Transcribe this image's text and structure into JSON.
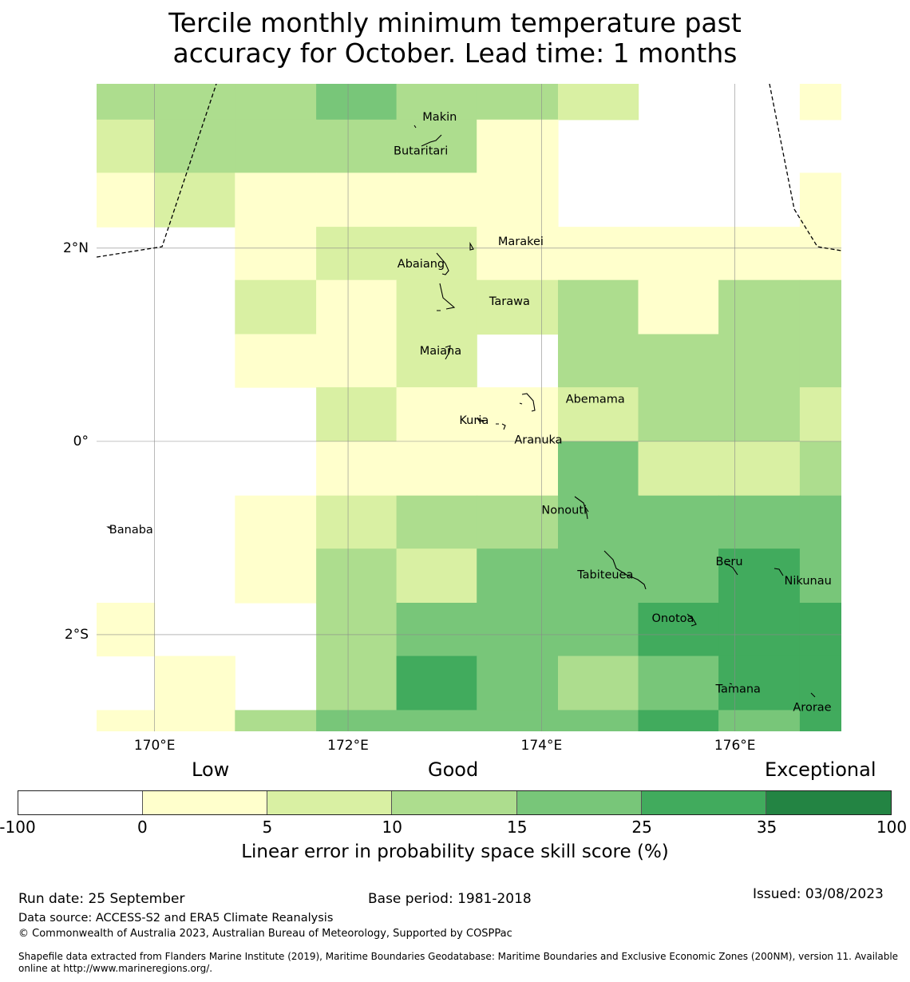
{
  "title": {
    "line1": "Tercile monthly minimum temperature past",
    "line2": "accuracy for October. Lead time: 1 months"
  },
  "map": {
    "lon_min": 169.4,
    "lon_max": 177.1,
    "lat_min": -3.0,
    "lat_max": 3.7,
    "x_ticks": [
      {
        "lon": 170,
        "label": "170°E"
      },
      {
        "lon": 172,
        "label": "172°E"
      },
      {
        "lon": 174,
        "label": "174°E"
      },
      {
        "lon": 176,
        "label": "176°E"
      }
    ],
    "y_ticks": [
      {
        "lat": 2,
        "label": "2°N"
      },
      {
        "lat": 0,
        "label": "0°"
      },
      {
        "lat": -2,
        "label": "2°S"
      }
    ],
    "grid_lon_edges": [
      169.4,
      170.0,
      170.83,
      171.67,
      172.5,
      173.33,
      174.17,
      175.0,
      175.83,
      176.67,
      177.1
    ],
    "grid_lat_edges": [
      3.7,
      3.33,
      2.78,
      2.22,
      1.67,
      1.11,
      0.56,
      0.0,
      -0.56,
      -1.11,
      -1.67,
      -2.22,
      -2.78,
      -3.0
    ],
    "cells": [
      [
        3,
        3,
        3,
        4,
        3,
        3,
        2,
        0,
        0,
        1
      ],
      [
        2,
        3,
        3,
        3,
        3,
        1,
        0,
        0,
        0,
        0
      ],
      [
        1,
        2,
        1,
        1,
        1,
        1,
        0,
        0,
        0,
        1
      ],
      [
        0,
        0,
        1,
        2,
        2,
        1,
        1,
        1,
        1,
        1
      ],
      [
        0,
        0,
        2,
        1,
        2,
        2,
        3,
        1,
        3,
        3
      ],
      [
        0,
        0,
        1,
        1,
        2,
        0,
        3,
        3,
        3,
        3
      ],
      [
        0,
        0,
        0,
        2,
        1,
        1,
        2,
        3,
        3,
        2
      ],
      [
        0,
        0,
        0,
        1,
        1,
        1,
        4,
        2,
        2,
        3
      ],
      [
        0,
        0,
        1,
        2,
        3,
        3,
        4,
        4,
        4,
        4
      ],
      [
        0,
        0,
        1,
        3,
        2,
        4,
        4,
        4,
        5,
        4
      ],
      [
        1,
        0,
        0,
        3,
        4,
        4,
        4,
        5,
        5,
        5
      ],
      [
        0,
        1,
        0,
        3,
        5,
        4,
        3,
        4,
        5,
        5
      ],
      [
        1,
        1,
        3,
        4,
        4,
        4,
        4,
        5,
        4,
        5
      ]
    ],
    "places": [
      {
        "name": "Makin",
        "lon": 172.77,
        "lat": 3.32
      },
      {
        "name": "Butaritari",
        "lon": 172.47,
        "lat": 2.97
      },
      {
        "name": "Marakei",
        "lon": 173.55,
        "lat": 2.03
      },
      {
        "name": "Abaiang",
        "lon": 172.51,
        "lat": 1.8
      },
      {
        "name": "Tarawa",
        "lon": 173.46,
        "lat": 1.41
      },
      {
        "name": "Maiana",
        "lon": 172.74,
        "lat": 0.9
      },
      {
        "name": "Abemama",
        "lon": 174.25,
        "lat": 0.4
      },
      {
        "name": "Kuria",
        "lon": 173.15,
        "lat": 0.18
      },
      {
        "name": "Aranuka",
        "lon": 173.72,
        "lat": -0.02
      },
      {
        "name": "Nonouti",
        "lon": 174.0,
        "lat": -0.75
      },
      {
        "name": "Banaba",
        "lon": 169.53,
        "lat": -0.95
      },
      {
        "name": "Beru",
        "lon": 175.8,
        "lat": -1.28
      },
      {
        "name": "Tabiteuea",
        "lon": 174.37,
        "lat": -1.42
      },
      {
        "name": "Nikunau",
        "lon": 176.51,
        "lat": -1.48
      },
      {
        "name": "Onotoa",
        "lon": 175.14,
        "lat": -1.87
      },
      {
        "name": "Tamana",
        "lon": 175.8,
        "lat": -2.6
      },
      {
        "name": "Arorae",
        "lon": 176.6,
        "lat": -2.79
      }
    ]
  },
  "legend": {
    "categories": [
      "Low",
      "Good",
      "Exceptional"
    ],
    "bins": [
      {
        "from": -100,
        "to": 0,
        "color": "#ffffff"
      },
      {
        "from": 0,
        "to": 5,
        "color": "#ffffcc"
      },
      {
        "from": 5,
        "to": 10,
        "color": "#d9f0a3"
      },
      {
        "from": 10,
        "to": 15,
        "color": "#addd8e"
      },
      {
        "from": 15,
        "to": 25,
        "color": "#78c679"
      },
      {
        "from": 25,
        "to": 35,
        "color": "#41ab5d"
      },
      {
        "from": 35,
        "to": 100,
        "color": "#238443"
      }
    ],
    "ticks": [
      "-100",
      "0",
      "5",
      "10",
      "15",
      "25",
      "35",
      "100"
    ],
    "label": "Linear error in probability space skill score (%)"
  },
  "footer": {
    "run_date": "Run date: 25 September",
    "base_period": "Base period: 1981-2018",
    "issued": "Issued: 03/08/2023",
    "data_source": "Data source: ACCESS-S2 and ERA5 Climate Reanalysis",
    "copyright": "© Commonwealth of Australia 2023, Australian Bureau of Meteorology, Supported by COSPPac",
    "shapefile": "Shapefile data extracted from Flanders Marine Institute (2019), Maritime Boundaries Geodatabase: Maritime Boundaries and Exclusive Economic Zones (200NM), version 11. Available online at http://www.marineregions.org/."
  }
}
